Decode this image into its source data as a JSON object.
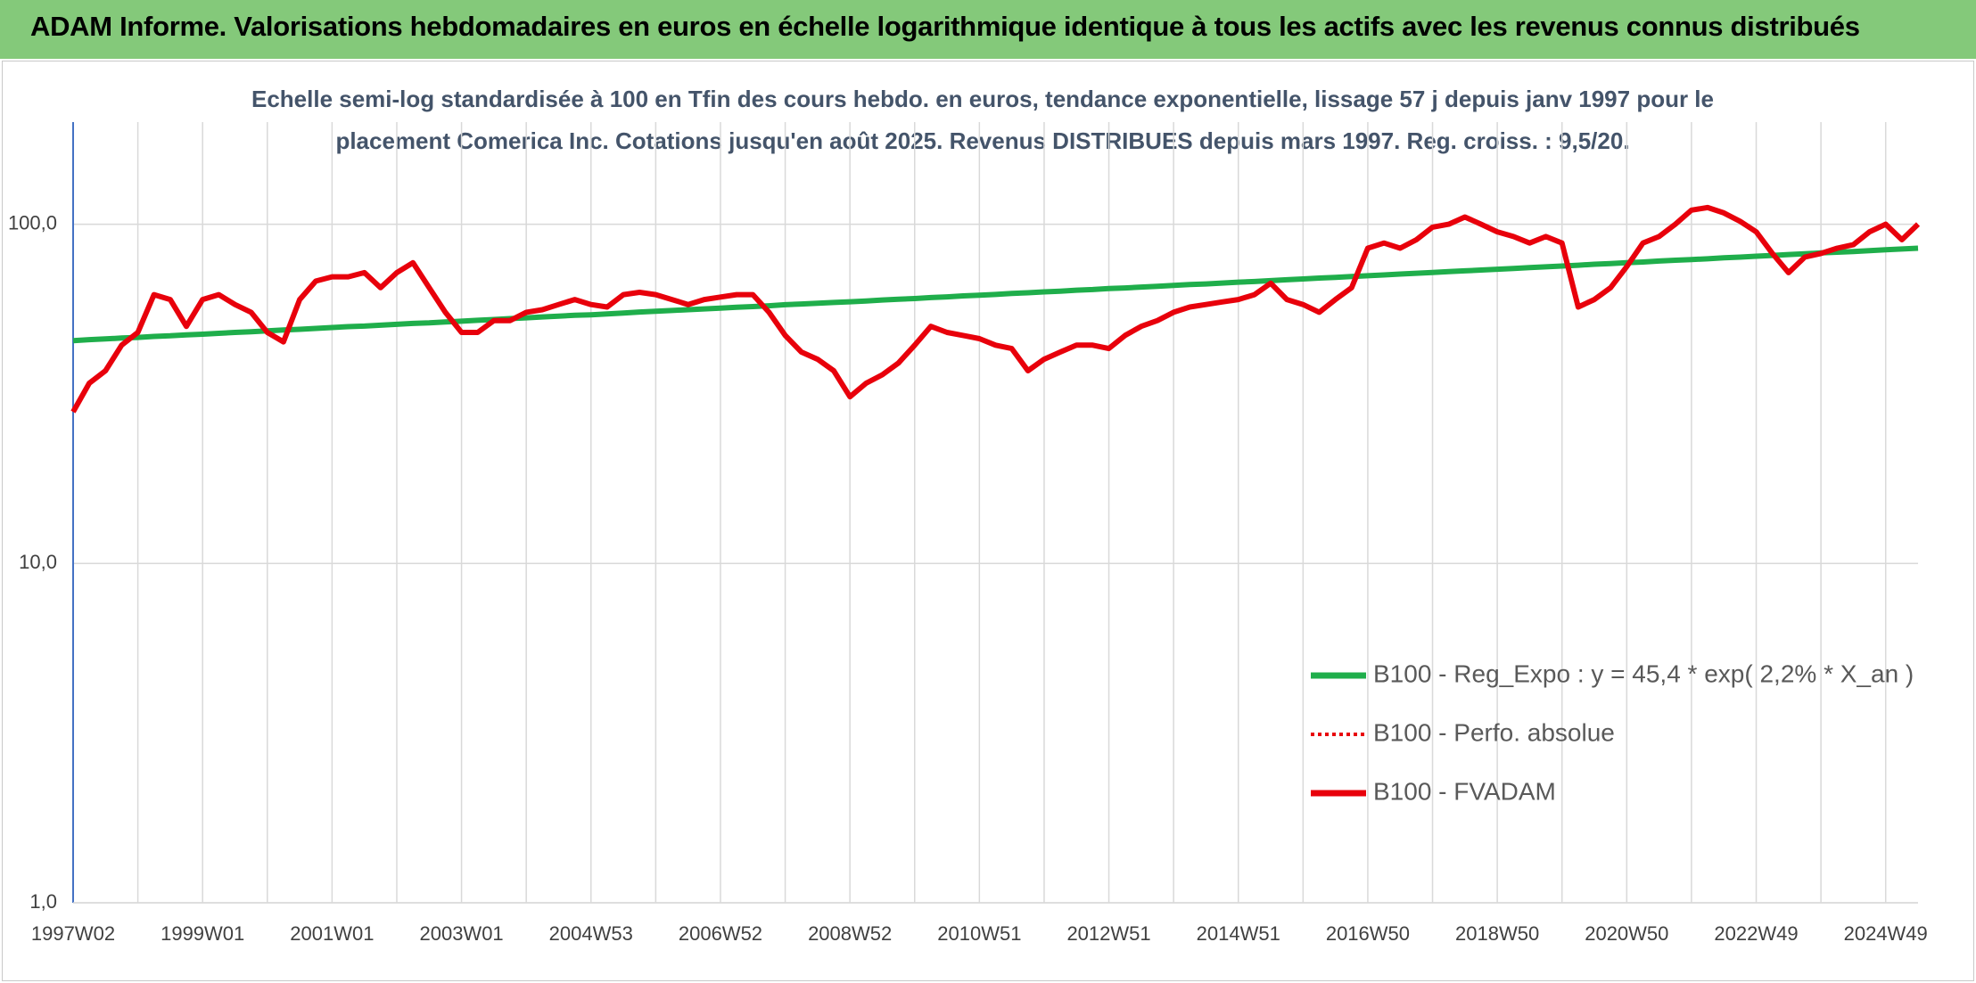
{
  "header": {
    "title": "ADAM Informe. Valorisations hebdomadaires en euros en échelle logarithmique identique à tous les actifs avec les revenus connus distribués"
  },
  "chart_data": {
    "type": "line",
    "subtitle": [
      "Echelle semi-log standardisée à 100 en Tfin des cours hebdo. en euros, tendance exponentielle, lissage 57 j depuis janv 1997 pour le",
      "placement Comerica Inc. Cotations jusqu'en août 2025. Revenus DISTRIBUES depuis mars 1997. Reg. croiss. : 9,5/20."
    ],
    "log_scale": true,
    "grid": true,
    "legend_position": "lower right",
    "ylim": [
      1,
      200
    ],
    "yticks": [
      {
        "value": 1,
        "label": "1,0"
      },
      {
        "value": 10,
        "label": "10,0"
      },
      {
        "value": 100,
        "label": "100,0"
      }
    ],
    "categories": [
      "1997W02",
      null,
      null,
      null,
      null,
      null,
      null,
      null,
      "1999W01",
      null,
      null,
      null,
      null,
      null,
      null,
      null,
      "2001W01",
      null,
      null,
      null,
      null,
      null,
      null,
      null,
      "2003W01",
      null,
      null,
      null,
      null,
      null,
      null,
      null,
      "2004W53",
      null,
      null,
      null,
      null,
      null,
      null,
      null,
      "2006W52",
      null,
      null,
      null,
      null,
      null,
      null,
      null,
      "2008W52",
      null,
      null,
      null,
      null,
      null,
      null,
      null,
      "2010W51",
      null,
      null,
      null,
      null,
      null,
      null,
      null,
      "2012W51",
      null,
      null,
      null,
      null,
      null,
      null,
      null,
      "2014W51",
      null,
      null,
      null,
      null,
      null,
      null,
      null,
      "2016W50",
      null,
      null,
      null,
      null,
      null,
      null,
      null,
      "2018W50",
      null,
      null,
      null,
      null,
      null,
      null,
      null,
      "2020W50",
      null,
      null,
      null,
      null,
      null,
      null,
      null,
      "2022W49",
      null,
      null,
      null,
      null,
      null,
      null,
      null,
      "2024W49",
      null,
      null
    ],
    "series": [
      {
        "name": "B100 - Reg_Expo : y = 45,4 * exp( 2,2% *  X_an )",
        "color": "#1fae4b",
        "dashed": false,
        "values": [
          45.4,
          45.7,
          45.9,
          46.2,
          46.4,
          46.7,
          46.9,
          47.2,
          47.4,
          47.7,
          48.0,
          48.2,
          48.5,
          48.8,
          49.0,
          49.3,
          49.6,
          49.9,
          50.1,
          50.4,
          50.7,
          51.0,
          51.2,
          51.5,
          51.8,
          52.1,
          52.4,
          52.7,
          53.0,
          53.3,
          53.6,
          53.9,
          54.1,
          54.4,
          54.7,
          55.1,
          55.4,
          55.7,
          56.0,
          56.3,
          56.6,
          56.9,
          57.2,
          57.5,
          57.9,
          58.2,
          58.5,
          58.8,
          59.1,
          59.4,
          59.8,
          60.1,
          60.4,
          60.8,
          61.1,
          61.5,
          61.8,
          62.1,
          62.5,
          62.8,
          63.2,
          63.5,
          63.9,
          64.2,
          64.6,
          64.9,
          65.3,
          65.6,
          66.0,
          66.4,
          66.7,
          67.1,
          67.5,
          67.8,
          68.2,
          68.6,
          69.0,
          69.4,
          69.7,
          70.1,
          70.5,
          70.9,
          71.3,
          71.7,
          72.1,
          72.5,
          72.9,
          73.3,
          73.7,
          74.1,
          74.5,
          74.9,
          75.3,
          75.7,
          76.2,
          76.6,
          77.0,
          77.4,
          77.9,
          78.3,
          78.7,
          79.1,
          79.6,
          80.0,
          80.5,
          80.9,
          81.4,
          81.8,
          82.3,
          82.7,
          83.1,
          83.6,
          84.1,
          84.5,
          85.0
        ]
      },
      {
        "name": "B100 - Perfo. absolue",
        "color": "#e8000b",
        "dashed": true,
        "values": [
          28,
          34,
          37,
          44,
          48,
          62,
          60,
          50,
          60,
          62,
          58,
          55,
          48,
          45,
          60,
          68,
          70,
          70,
          72,
          65,
          72,
          77,
          65,
          55,
          48,
          48,
          52,
          52,
          55,
          56,
          58,
          60,
          58,
          57,
          62,
          63,
          62,
          60,
          58,
          60,
          61,
          62,
          62,
          55,
          47,
          42,
          40,
          37,
          31,
          34,
          36,
          39,
          44,
          50,
          48,
          47,
          46,
          44,
          43,
          37,
          40,
          42,
          44,
          44,
          43,
          47,
          50,
          52,
          55,
          57,
          58,
          59,
          60,
          62,
          67,
          60,
          58,
          55,
          60,
          65,
          85,
          88,
          85,
          90,
          98,
          100,
          105,
          100,
          95,
          92,
          88,
          92,
          88,
          57,
          60,
          65,
          75,
          88,
          92,
          100,
          110,
          112,
          108,
          102,
          95,
          82,
          72,
          80,
          82,
          85,
          87,
          95,
          100,
          90,
          100
        ]
      },
      {
        "name": "B100 - FVADAM",
        "color": "#e8000b",
        "dashed": false,
        "values": [
          28,
          34,
          37,
          44,
          48,
          62,
          60,
          50,
          60,
          62,
          58,
          55,
          48,
          45,
          60,
          68,
          70,
          70,
          72,
          65,
          72,
          77,
          65,
          55,
          48,
          48,
          52,
          52,
          55,
          56,
          58,
          60,
          58,
          57,
          62,
          63,
          62,
          60,
          58,
          60,
          61,
          62,
          62,
          55,
          47,
          42,
          40,
          37,
          31,
          34,
          36,
          39,
          44,
          50,
          48,
          47,
          46,
          44,
          43,
          37,
          40,
          42,
          44,
          44,
          43,
          47,
          50,
          52,
          55,
          57,
          58,
          59,
          60,
          62,
          67,
          60,
          58,
          55,
          60,
          65,
          85,
          88,
          85,
          90,
          98,
          100,
          105,
          100,
          95,
          92,
          88,
          92,
          88,
          57,
          60,
          65,
          75,
          88,
          92,
          100,
          110,
          112,
          108,
          102,
          95,
          82,
          72,
          80,
          82,
          85,
          87,
          95,
          100,
          90,
          100
        ]
      }
    ]
  }
}
